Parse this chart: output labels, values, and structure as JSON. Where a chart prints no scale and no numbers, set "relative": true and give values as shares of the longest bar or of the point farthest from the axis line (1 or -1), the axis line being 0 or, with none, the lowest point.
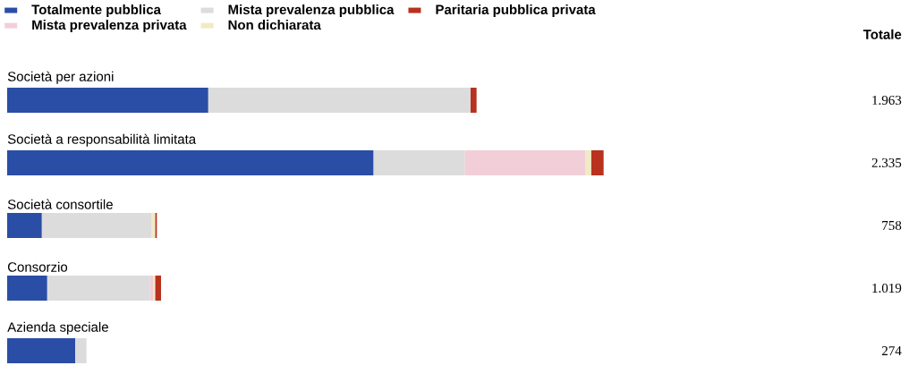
{
  "chart_data": {
    "type": "bar",
    "orientation": "horizontal",
    "stacked": true,
    "relative": true,
    "legend": "top left",
    "categories": [
      "Società per azioni",
      "Società a responsabilità limitata",
      "Società consortile",
      "Consorzio",
      "Azienda speciale"
    ],
    "series": [
      {
        "name": "Totalmente pubblica",
        "color": "#2a4da6",
        "values": [
          0.337,
          0.614,
          0.058,
          0.067,
          0.114
        ]
      },
      {
        "name": "Mista prevalenza pubblica",
        "color": "#dcdcdc",
        "values": [
          0.44,
          0.153,
          0.184,
          0.172,
          0.019
        ]
      },
      {
        "name": "Mista prevalenza privata",
        "color": "#f2cfd8",
        "values": [
          0,
          0.202,
          0,
          0.006,
          0
        ]
      },
      {
        "name": "Non dichiarata",
        "color": "#f0ebc4",
        "values": [
          0,
          0.01,
          0.006,
          0.003,
          0
        ]
      },
      {
        "name": "Paritaria pubblica privata",
        "color": "#b8321e",
        "values": [
          0.01,
          0.021,
          0.003,
          0.01,
          0
        ]
      }
    ],
    "annotations": [
      "Totale",
      "1.963",
      "2.335",
      "758",
      "1.019",
      "274"
    ]
  }
}
